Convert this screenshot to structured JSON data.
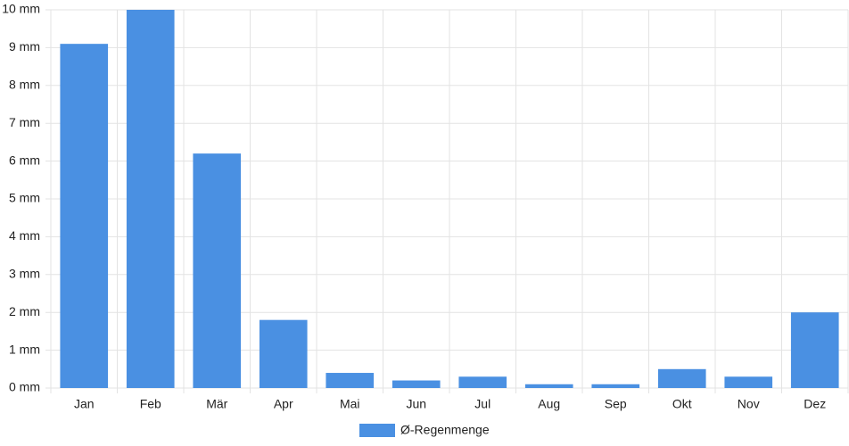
{
  "chart_data": {
    "type": "bar",
    "categories": [
      "Jan",
      "Feb",
      "Mär",
      "Apr",
      "Mai",
      "Jun",
      "Jul",
      "Aug",
      "Sep",
      "Okt",
      "Nov",
      "Dez"
    ],
    "series": [
      {
        "name": "Ø-Regenmenge",
        "color": "#4a90e2",
        "values": [
          9.1,
          10,
          6.2,
          1.8,
          0.4,
          0.2,
          0.3,
          0.1,
          0.1,
          0.5,
          0.3,
          2.0
        ]
      }
    ],
    "ylim": [
      0,
      10
    ],
    "yticks": [
      {
        "value": 0,
        "label": "0 mm"
      },
      {
        "value": 1,
        "label": "1 mm"
      },
      {
        "value": 2,
        "label": "2 mm"
      },
      {
        "value": 3,
        "label": "3 mm"
      },
      {
        "value": 4,
        "label": "4 mm"
      },
      {
        "value": 5,
        "label": "5 mm"
      },
      {
        "value": 6,
        "label": "6 mm"
      },
      {
        "value": 7,
        "label": "7 mm"
      },
      {
        "value": 8,
        "label": "8 mm"
      },
      {
        "value": 9,
        "label": "9 mm"
      },
      {
        "value": 10,
        "label": "10 mm"
      }
    ],
    "grid": true,
    "legend": "bottom"
  }
}
